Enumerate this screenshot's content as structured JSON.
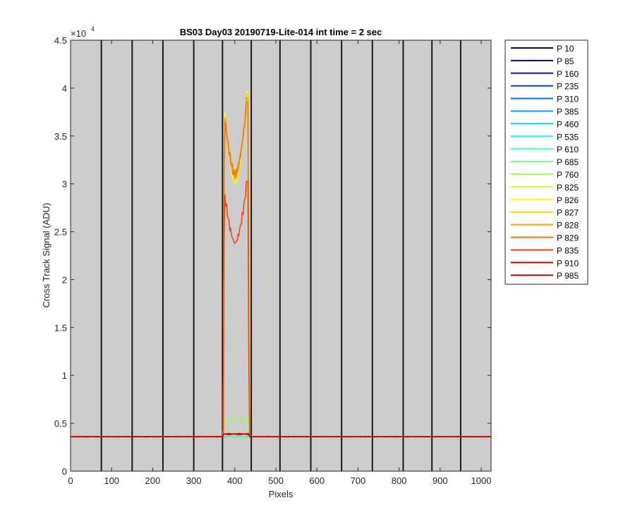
{
  "chart_data": {
    "type": "line",
    "title": "BS03 Day03 20190719-Lite-014 int time = 2 sec",
    "xlabel": "Pixels",
    "ylabel": "Cross Track Signal (ADU)",
    "xlim": [
      0,
      1024
    ],
    "ylim": [
      0,
      45000
    ],
    "y_exponent_label": "×10",
    "y_exponent": "4",
    "xticks": [
      "0",
      "100",
      "200",
      "300",
      "400",
      "500",
      "600",
      "700",
      "800",
      "900",
      "1000"
    ],
    "yticks": [
      "0",
      "0.5",
      "1",
      "1.5",
      "2",
      "2.5",
      "3",
      "3.5",
      "4",
      "4.5"
    ],
    "vertical_lines_x": [
      75,
      150,
      225,
      300,
      370,
      440,
      510,
      585,
      660,
      735,
      810,
      880,
      950
    ],
    "background": "#cccccc",
    "baseline": 3600,
    "legend_position": "outside-right",
    "series": [
      {
        "name": "P 10",
        "color": "#00008f",
        "profile": "flat"
      },
      {
        "name": "P 85",
        "color": "#0000b8",
        "profile": "flat"
      },
      {
        "name": "P 160",
        "color": "#0010e0",
        "profile": "flat"
      },
      {
        "name": "P 235",
        "color": "#0040ff",
        "profile": "flat"
      },
      {
        "name": "P 310",
        "color": "#0070ff",
        "profile": "flat"
      },
      {
        "name": "P 385",
        "color": "#00a0ff",
        "profile": "flat"
      },
      {
        "name": "P 460",
        "color": "#00d0ff",
        "profile": "flat"
      },
      {
        "name": "P 535",
        "color": "#10ffef",
        "profile": "flat"
      },
      {
        "name": "P 610",
        "color": "#40ffbf",
        "profile": "flat"
      },
      {
        "name": "P 685",
        "color": "#70ff8f",
        "profile": "flat"
      },
      {
        "name": "P 760",
        "color": "#a0ff60",
        "profile": "low_plateau",
        "peak": 5600
      },
      {
        "name": "P 825",
        "color": "#d0ff30",
        "profile": "peak",
        "peak": 40500,
        "dip": 30200
      },
      {
        "name": "P 826",
        "color": "#ffff00",
        "profile": "peak",
        "peak": 40800,
        "dip": 30300
      },
      {
        "name": "P 827",
        "color": "#ffcf00",
        "profile": "peak",
        "peak": 40600,
        "dip": 30500
      },
      {
        "name": "P 828",
        "color": "#ff9f00",
        "profile": "peak",
        "peak": 40200,
        "dip": 30700
      },
      {
        "name": "P 829",
        "color": "#ff7000",
        "profile": "peak",
        "peak": 39700,
        "dip": 31000
      },
      {
        "name": "P 835",
        "color": "#ff4000",
        "profile": "mid_peak",
        "peak": 31200,
        "dip": 23800
      },
      {
        "name": "P 910",
        "color": "#ef0000",
        "profile": "small",
        "peak": 3900
      },
      {
        "name": "P 985",
        "color": "#bf0000",
        "profile": "small",
        "peak": 3850
      }
    ]
  }
}
